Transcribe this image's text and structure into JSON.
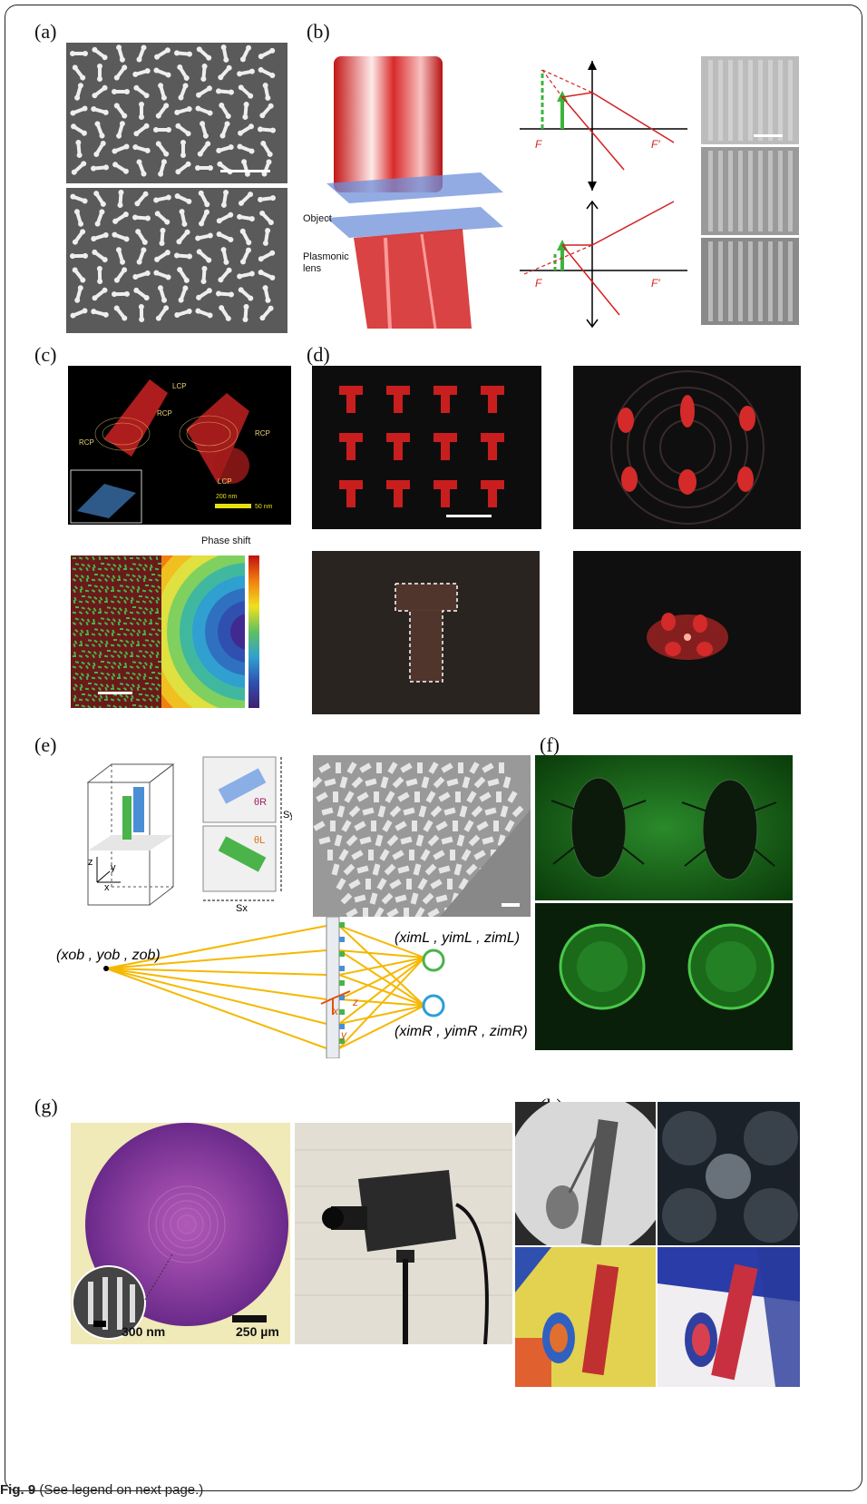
{
  "figure": {
    "caption_label": "Fig. 9",
    "caption_text": " (See legend on next page.)"
  },
  "panels": {
    "a": {
      "label": "(a)"
    },
    "b": {
      "label": "(b)",
      "object_label": "Object",
      "lens_label_1": "Plasmonic",
      "lens_label_2": "lens",
      "focal_F": "F",
      "focal_Fp": "F′"
    },
    "c": {
      "label": "(c)",
      "lcp_1": "LCP",
      "lcp_2": "LCP",
      "rcp_1": "RCP",
      "rcp_2": "RCP",
      "rcp_3": "RCP",
      "scale_200": "200 nm",
      "scale_50": "50 nm",
      "phase_title": "Phase shift"
    },
    "d": {
      "label": "(d)"
    },
    "e": {
      "label": "(e)",
      "axis_z": "z",
      "axis_y": "y",
      "axis_x": "x",
      "theta_R": "θR",
      "theta_L": "θL",
      "sy": "Sy",
      "sx": "Sx",
      "object_point": "(xob , yob , zob)",
      "image_L": "(ximL , yimL , zimL)",
      "image_R": "(ximR , yimR , zimR)",
      "meta_x": "x",
      "meta_y": "y",
      "meta_z": "z"
    },
    "f": {
      "label": "(f)"
    },
    "g": {
      "label": "(g)",
      "scale_300": "300 nm",
      "scale_250": "250 µm"
    },
    "h": {
      "label": "(h)"
    }
  },
  "colors": {
    "frame": "#222222",
    "arrow_orange": "#f5b800",
    "red_beam": "#d42020",
    "green": "#4ab34a",
    "blue": "#2a9fd8"
  }
}
